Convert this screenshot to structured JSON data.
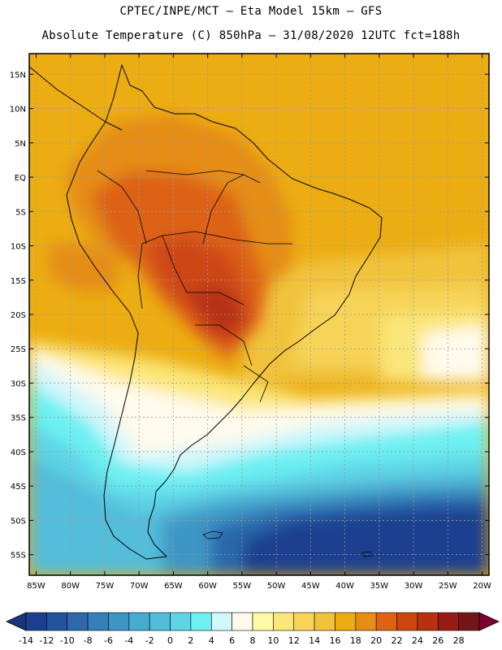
{
  "header": {
    "line1": "CPTEC/INPE/MCT –  Eta Model 15km – GFS",
    "line2": "Absolute Temperature (C) 850hPa – 31/08/2020 12UTC fct=188h"
  },
  "map": {
    "lat_labels": [
      "15N",
      "10N",
      "5N",
      "EQ",
      "5S",
      "10S",
      "15S",
      "20S",
      "25S",
      "30S",
      "35S",
      "40S",
      "45S",
      "50S",
      "55S"
    ],
    "lat_values": [
      15,
      10,
      5,
      0,
      -5,
      -10,
      -15,
      -20,
      -25,
      -30,
      -35,
      -40,
      -45,
      -50,
      -55
    ],
    "lon_labels": [
      "85W",
      "80W",
      "75W",
      "70W",
      "65W",
      "60W",
      "55W",
      "50W",
      "45W",
      "40W",
      "35W",
      "30W",
      "25W",
      "20W"
    ],
    "lon_values": [
      -85,
      -80,
      -75,
      -70,
      -65,
      -60,
      -55,
      -50,
      -45,
      -40,
      -35,
      -30,
      -25,
      -20
    ],
    "extent": {
      "lon": [
        -86,
        -19
      ],
      "lat": [
        -58,
        18
      ]
    }
  },
  "colorbar": {
    "ticks": [
      "-14",
      "-12",
      "-10",
      "-8",
      "-6",
      "-4",
      "-2",
      "0",
      "2",
      "4",
      "6",
      "8",
      "10",
      "12",
      "14",
      "16",
      "18",
      "20",
      "22",
      "24",
      "26",
      "28"
    ],
    "colors": [
      "#1c3f8f",
      "#24539d",
      "#2c68ab",
      "#3580b8",
      "#3e95c4",
      "#47aad0",
      "#52bdda",
      "#5fd4e6",
      "#6cf0f2",
      "#d2f6fb",
      "#fffaeb",
      "#fffaa6",
      "#fbe679",
      "#f7d459",
      "#f1c33c",
      "#ecad12",
      "#e58d14",
      "#dd6213",
      "#cd4612",
      "#b53112",
      "#961c14",
      "#751616"
    ],
    "low_arrow_color": "#18357c",
    "high_arrow_color": "#7c0030"
  }
}
